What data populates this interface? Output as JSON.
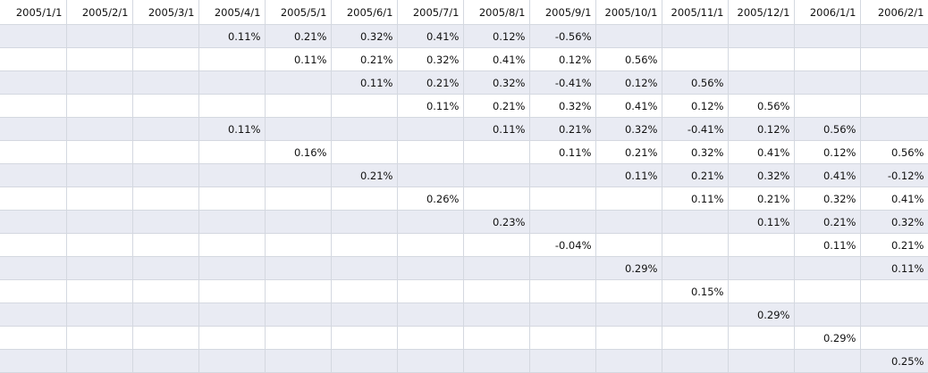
{
  "headers": [
    "2005/1/1",
    "2005/2/1",
    "2005/3/1",
    "2005/4/1",
    "2005/5/1",
    "2005/6/1",
    "2005/7/1",
    "2005/8/1",
    "2005/9/1",
    "2005/10/1",
    "2005/11/1",
    "2005/12/1",
    "2006/1/1",
    "2006/2/1"
  ],
  "rows": [
    [
      "",
      "",
      "",
      "0.11%",
      "0.21%",
      "0.32%",
      "0.41%",
      "0.12%",
      "-0.56%",
      "",
      "",
      "",
      "",
      ""
    ],
    [
      "",
      "",
      "",
      "",
      "0.11%",
      "0.21%",
      "0.32%",
      "0.41%",
      "0.12%",
      "0.56%",
      "",
      "",
      "",
      ""
    ],
    [
      "",
      "",
      "",
      "",
      "",
      "0.11%",
      "0.21%",
      "0.32%",
      "-0.41%",
      "0.12%",
      "0.56%",
      "",
      "",
      ""
    ],
    [
      "",
      "",
      "",
      "",
      "",
      "",
      "0.11%",
      "0.21%",
      "0.32%",
      "0.41%",
      "0.12%",
      "0.56%",
      "",
      ""
    ],
    [
      "",
      "",
      "",
      "0.11%",
      "",
      "",
      "",
      "0.11%",
      "0.21%",
      "0.32%",
      "-0.41%",
      "0.12%",
      "0.56%",
      ""
    ],
    [
      "",
      "",
      "",
      "",
      "0.16%",
      "",
      "",
      "",
      "0.11%",
      "0.21%",
      "0.32%",
      "0.41%",
      "0.12%",
      "0.56%"
    ],
    [
      "",
      "",
      "",
      "",
      "",
      "0.21%",
      "",
      "",
      "",
      "0.11%",
      "0.21%",
      "0.32%",
      "0.41%",
      "-0.12%"
    ],
    [
      "",
      "",
      "",
      "",
      "",
      "",
      "0.26%",
      "",
      "",
      "",
      "0.11%",
      "0.21%",
      "0.32%",
      "0.41%"
    ],
    [
      "",
      "",
      "",
      "",
      "",
      "",
      "",
      "0.23%",
      "",
      "",
      "",
      "0.11%",
      "0.21%",
      "0.32%"
    ],
    [
      "",
      "",
      "",
      "",
      "",
      "",
      "",
      "",
      "-0.04%",
      "",
      "",
      "",
      "0.11%",
      "0.21%"
    ],
    [
      "",
      "",
      "",
      "",
      "",
      "",
      "",
      "",
      "",
      "0.29%",
      "",
      "",
      "",
      "0.11%"
    ],
    [
      "",
      "",
      "",
      "",
      "",
      "",
      "",
      "",
      "",
      "",
      "0.15%",
      "",
      "",
      ""
    ],
    [
      "",
      "",
      "",
      "",
      "",
      "",
      "",
      "",
      "",
      "",
      "",
      "0.29%",
      "",
      ""
    ],
    [
      "",
      "",
      "",
      "",
      "",
      "",
      "",
      "",
      "",
      "",
      "",
      "",
      "0.29%",
      ""
    ],
    [
      "",
      "",
      "",
      "",
      "",
      "",
      "",
      "",
      "",
      "",
      "",
      "",
      "",
      "0.25%"
    ]
  ]
}
